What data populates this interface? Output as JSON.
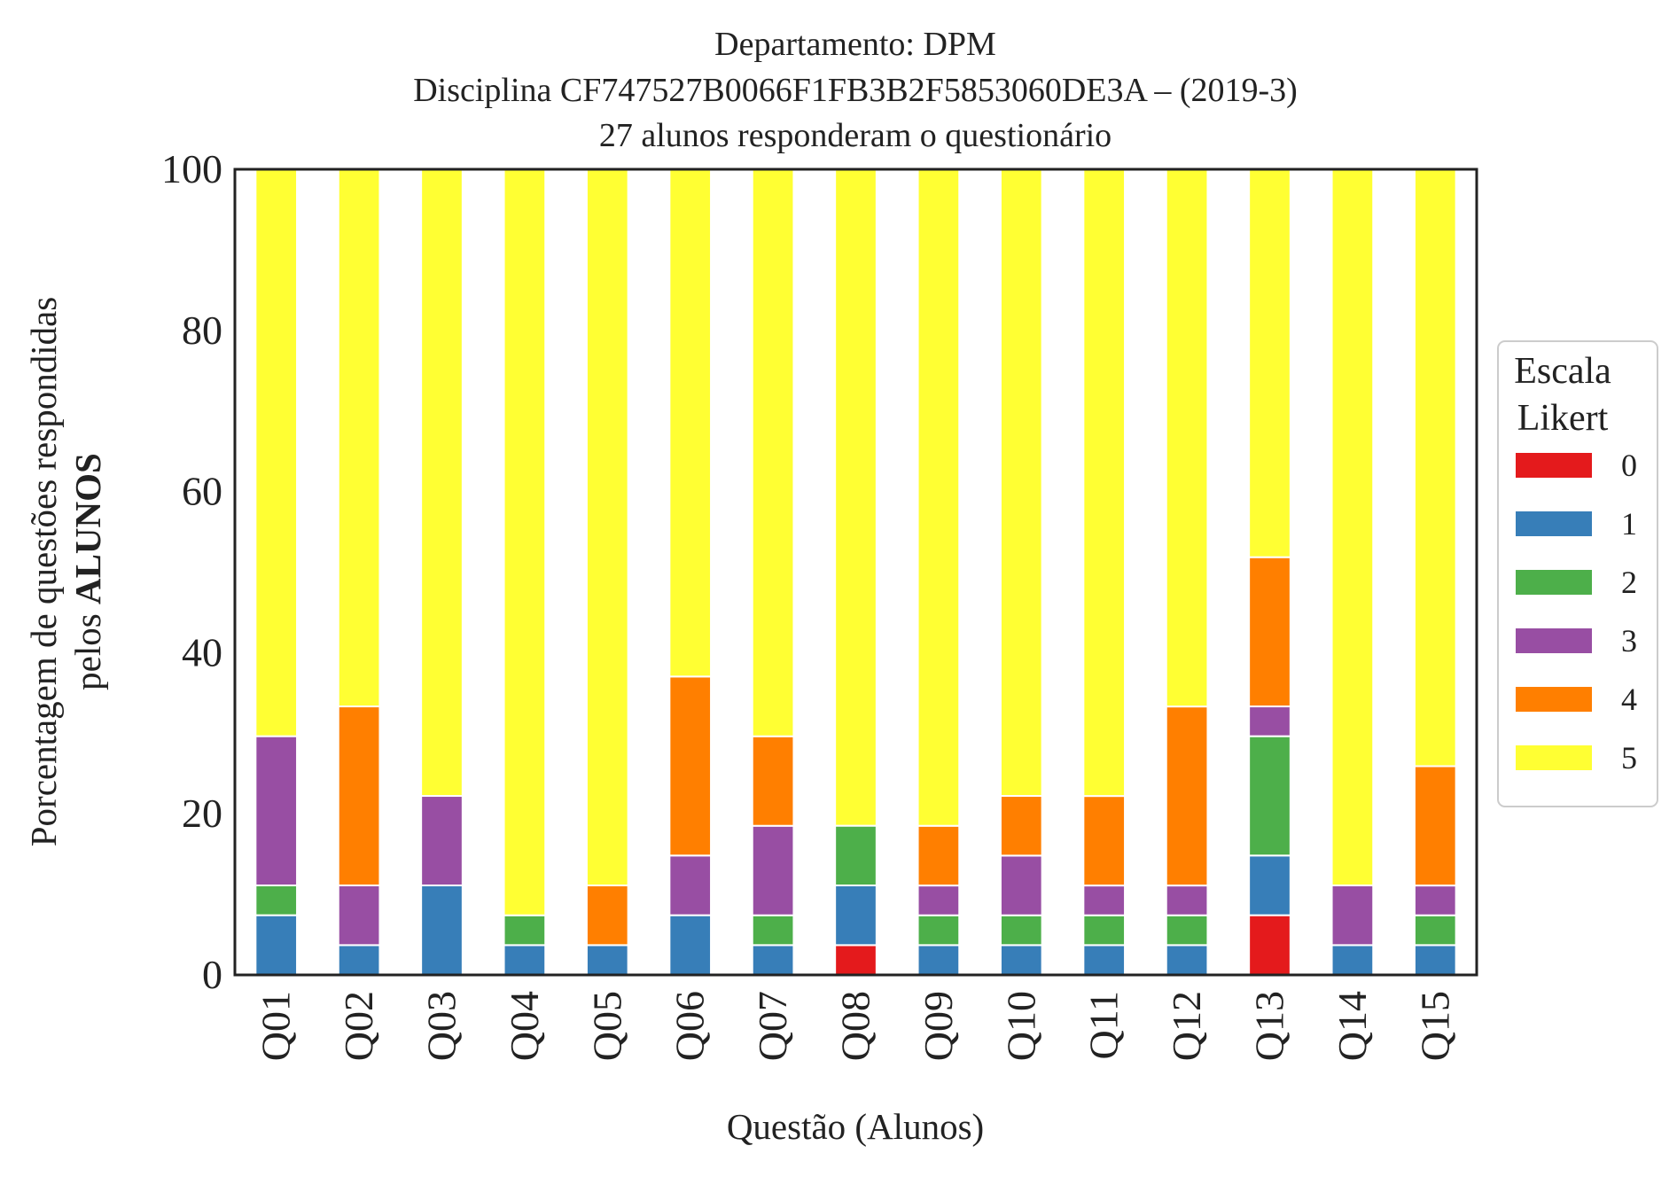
{
  "chart_data": {
    "type": "bar",
    "stacked": true,
    "title_lines": [
      "Departamento: DPM",
      "Disciplina CF747527B0066F1FB3B2F5853060DE3A – (2019-3)",
      "27 alunos responderam o questionário"
    ],
    "xlabel": "Questão (Alunos)",
    "ylabel_line1": "Porcentagem de questões respondidas",
    "ylabel_line2_prefix": "pelos ",
    "ylabel_line2_bold": "ALUNOS",
    "ylim": [
      0,
      100
    ],
    "yticks": [
      "0",
      "20",
      "40",
      "60",
      "80",
      "100"
    ],
    "grid": false,
    "legend": {
      "title_line1": "Escala",
      "title_line2": "Likert",
      "placement": "center-right outside"
    },
    "categories": [
      "Q01",
      "Q02",
      "Q03",
      "Q04",
      "Q05",
      "Q06",
      "Q07",
      "Q08",
      "Q09",
      "Q10",
      "Q11",
      "Q12",
      "Q13",
      "Q14",
      "Q15"
    ],
    "series": [
      {
        "name": "0",
        "color": "#e41a1c",
        "values": [
          0,
          0,
          0,
          0,
          0,
          0,
          0,
          3.7,
          0,
          0,
          0,
          0,
          7.41,
          0,
          0
        ]
      },
      {
        "name": "1",
        "color": "#377eb8",
        "values": [
          7.41,
          3.7,
          11.11,
          3.7,
          3.7,
          7.41,
          3.7,
          7.41,
          3.7,
          3.7,
          3.7,
          3.7,
          7.41,
          3.7,
          3.7
        ]
      },
      {
        "name": "2",
        "color": "#4daf4a",
        "values": [
          3.7,
          0,
          0,
          3.7,
          0,
          0,
          3.7,
          7.41,
          3.7,
          3.7,
          3.7,
          3.7,
          14.81,
          0,
          3.7
        ]
      },
      {
        "name": "3",
        "color": "#984ea3",
        "values": [
          18.52,
          7.41,
          11.11,
          0,
          0,
          7.41,
          11.11,
          0,
          3.7,
          7.41,
          3.7,
          3.7,
          3.7,
          7.41,
          3.7
        ]
      },
      {
        "name": "4",
        "color": "#ff7f00",
        "values": [
          0,
          22.22,
          0,
          0,
          7.41,
          22.22,
          11.11,
          0,
          7.41,
          7.41,
          11.11,
          22.22,
          18.52,
          0,
          14.81
        ]
      },
      {
        "name": "5",
        "color": "#ffff33",
        "values": [
          70.37,
          66.67,
          77.78,
          92.59,
          88.89,
          62.96,
          70.37,
          81.48,
          81.48,
          77.78,
          77.78,
          66.67,
          48.15,
          88.89,
          74.07
        ]
      }
    ]
  }
}
